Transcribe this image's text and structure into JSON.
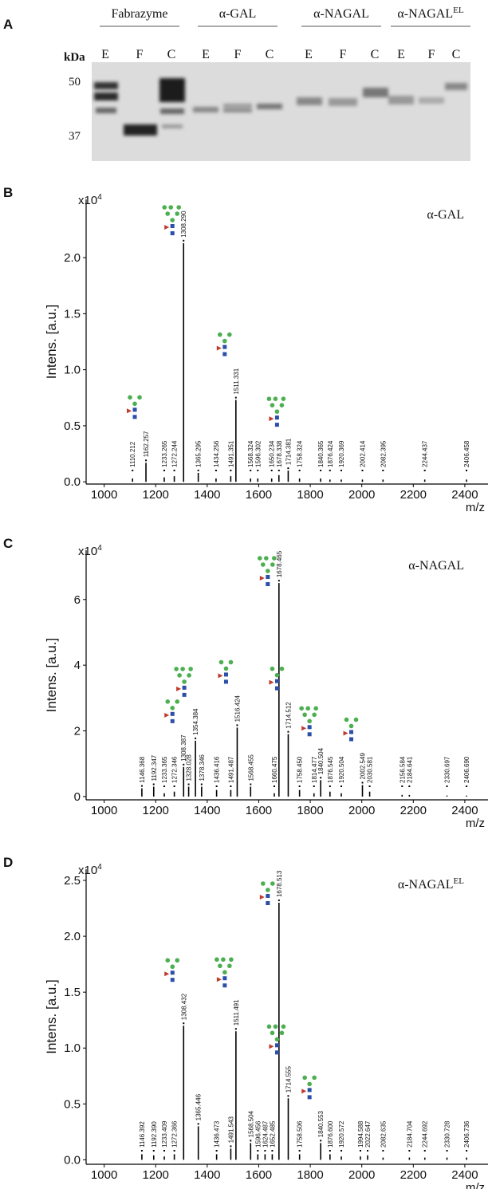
{
  "gel": {
    "panel": "A",
    "unit": "kDa",
    "markers": [
      50,
      37
    ],
    "groups": [
      {
        "name": "Fabrazyme",
        "lanes": [
          "E",
          "F",
          "C"
        ]
      },
      {
        "name": "α-GAL",
        "lanes": [
          "E",
          "F",
          "C"
        ]
      },
      {
        "name": "α-NAGAL",
        "lanes": [
          "E",
          "F",
          "C"
        ]
      },
      {
        "name": "α-NAGAL",
        "name_sup": "EL",
        "lanes": [
          "E",
          "F",
          "C"
        ]
      }
    ]
  },
  "chart_data": [
    {
      "type": "spectrum",
      "panel": "B",
      "annotation": "α-GAL",
      "ylabel": "Intens. [a.u.]",
      "xlabel": "m/z",
      "scale": "x10",
      "scale_exp": "4",
      "color": "#000000",
      "xlim": [
        930,
        2490
      ],
      "ylim": [
        -0.02,
        2.52
      ],
      "xticks": [
        1000,
        1200,
        1400,
        1600,
        1800,
        2000,
        2200,
        2400
      ],
      "yticks": [
        {
          "value": 0,
          "label": "0.0"
        },
        {
          "value": 0.5,
          "label": "0.5"
        },
        {
          "value": 1,
          "label": "1.0"
        },
        {
          "value": 1.5,
          "label": "1.5"
        },
        {
          "value": 2,
          "label": "2.0"
        }
      ],
      "x": [
        1110.212,
        1162.257,
        1233.265,
        1272.244,
        1308.29,
        1365.295,
        1434.256,
        1491.351,
        1511.331,
        1568.324,
        1596.302,
        1650.234,
        1678.338,
        1714.381,
        1758.324,
        1840.365,
        1876.424,
        1920.369,
        2002.414,
        2082.395,
        2244.437,
        2406.458
      ],
      "x_labels": [
        "1110.212",
        "1162.257",
        "1233.265",
        "1272.244",
        "1308.290",
        "1365.295",
        "1434.256",
        "1491.351",
        "1511.331",
        "1568.324",
        "1596.302",
        "1650.234",
        "1678.338",
        "1714.381",
        "1758.324",
        "1840.365",
        "1876.424",
        "1920.369",
        "2002.414",
        "2082.395",
        "2244.437",
        "2406.458"
      ],
      "values": [
        0.03,
        0.17,
        0.04,
        0.05,
        2.13,
        0.08,
        0.03,
        0.05,
        0.73,
        0.03,
        0.03,
        0.03,
        0.06,
        0.1,
        0.03,
        0.03,
        0.02,
        0.02,
        0.02,
        0.02,
        0.02,
        0.02
      ]
    },
    {
      "type": "spectrum",
      "panel": "C",
      "annotation": "α-NAGAL",
      "ylabel": "Intens. [a.u.]",
      "xlabel": "m/z",
      "scale": "x10",
      "scale_exp": "4",
      "color": "#000000",
      "xlim": [
        930,
        2490
      ],
      "ylim": [
        -0.1,
        7.5
      ],
      "xticks": [
        1000,
        1200,
        1400,
        1600,
        1800,
        2000,
        2200,
        2400
      ],
      "yticks": [
        0,
        2,
        4,
        6
      ],
      "x": [
        1146.368,
        1192.347,
        1233.365,
        1272.346,
        1308.387,
        1328.028,
        1354.384,
        1378.346,
        1436.416,
        1491.487,
        1516.424,
        1568.455,
        1660.475,
        1678.465,
        1714.512,
        1758.45,
        1814.477,
        1840.504,
        1876.545,
        1920.504,
        2002.549,
        2030.581,
        2156.584,
        2184.641,
        2330.697,
        2406.69
      ],
      "x_labels": [
        "1146.368",
        "1192.347",
        "1233.365",
        "1272.346",
        "1308.387",
        "1328.028",
        "1354.384",
        "1378.346",
        "1436.416",
        "1491.487",
        "1516.424",
        "1568.455",
        "1660.475",
        "1678.465",
        "1714.512",
        "1758.450",
        "1814.477",
        "1840.504",
        "1876.545",
        "1920.504",
        "2002.549",
        "2030.581",
        "2156.584",
        "2184.641",
        "2330.697",
        "2406.690"
      ],
      "values": [
        0.25,
        0.3,
        0.1,
        0.15,
        0.9,
        0.3,
        1.7,
        0.3,
        0.2,
        0.2,
        2.1,
        0.3,
        0.1,
        6.5,
        1.9,
        0.2,
        0.1,
        0.5,
        0.15,
        0.1,
        0.35,
        0.15,
        0.05,
        0.05,
        0.03,
        0.03
      ]
    },
    {
      "type": "spectrum",
      "panel": "D",
      "annotation": "α-NAGAL",
      "annotation_sup": "EL",
      "ylabel": "Intens. [a.u.]",
      "xlabel": "m/z",
      "scale": "x10",
      "scale_exp": "4",
      "color": "#000000",
      "xlim": [
        930,
        2490
      ],
      "ylim": [
        -0.04,
        2.6
      ],
      "xticks": [
        1000,
        1200,
        1400,
        1600,
        1800,
        2000,
        2200,
        2400
      ],
      "yticks": [
        {
          "value": 0,
          "label": "0.0"
        },
        {
          "value": 0.5,
          "label": "0.5"
        },
        {
          "value": 1,
          "label": "1.0"
        },
        {
          "value": 1.5,
          "label": "1.5"
        },
        {
          "value": 2,
          "label": "2.0"
        },
        {
          "value": 2.5,
          "label": "2.5"
        }
      ],
      "x": [
        1146.392,
        1192.39,
        1233.409,
        1272.366,
        1308.432,
        1365.446,
        1436.473,
        1491.543,
        1511.491,
        1568.504,
        1596.456,
        1624.487,
        1652.485,
        1678.513,
        1714.555,
        1758.506,
        1840.553,
        1876.6,
        1920.572,
        1994.588,
        2022.647,
        2082.635,
        2184.704,
        2244.692,
        2330.728,
        2406.736
      ],
      "x_labels": [
        "1146.392",
        "1192.390",
        "1233.409",
        "1272.366",
        "1308.432",
        "1365.446",
        "1436.473",
        "1491.543",
        "1511.491",
        "1568.504",
        "1596.456",
        "1624.487",
        "1652.485",
        "1678.513",
        "1714.555",
        "1758.506",
        "1840.553",
        "1876.600",
        "1920.572",
        "1994.588",
        "2022.647",
        "2082.635",
        "2184.704",
        "2244.692",
        "2330.728",
        "2406.736"
      ],
      "values": [
        0.05,
        0.04,
        0.03,
        0.05,
        1.2,
        0.3,
        0.05,
        0.1,
        1.15,
        0.15,
        0.05,
        0.05,
        0.05,
        2.3,
        0.55,
        0.05,
        0.15,
        0.05,
        0.03,
        0.03,
        0.04,
        0.02,
        0.02,
        0.02,
        0.02,
        0.02
      ]
    }
  ]
}
